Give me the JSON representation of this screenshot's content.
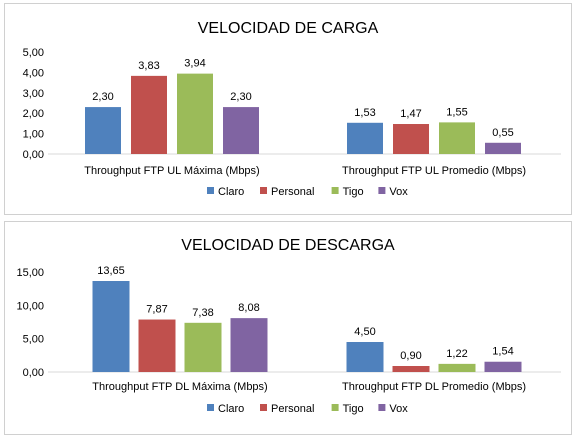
{
  "chart_data": [
    {
      "type": "bar",
      "title": "VELOCIDAD DE CARGA",
      "categories": [
        "Throughput FTP UL Máxima (Mbps)",
        "Throughput FTP UL Promedio (Mbps)"
      ],
      "series": [
        {
          "name": "Claro",
          "values": [
            2.3,
            1.53
          ],
          "labels": [
            "2,30",
            "1,53"
          ],
          "color": "#4F81BD"
        },
        {
          "name": "Personal",
          "values": [
            3.83,
            1.47
          ],
          "labels": [
            "3,83",
            "1,47"
          ],
          "color": "#C0504D"
        },
        {
          "name": "Tigo",
          "values": [
            3.94,
            1.55
          ],
          "labels": [
            "3,94",
            "1,55"
          ],
          "color": "#9BBB59"
        },
        {
          "name": "Vox",
          "values": [
            2.3,
            0.55
          ],
          "labels": [
            "2,30",
            "0,55"
          ],
          "color": "#8064A2"
        }
      ],
      "ylim": [
        0,
        5
      ],
      "yticks": [
        "0,00",
        "1,00",
        "2,00",
        "3,00",
        "4,00",
        "5,00"
      ],
      "legend": "bottom",
      "grid": false
    },
    {
      "type": "bar",
      "title": "VELOCIDAD DE DESCARGA",
      "categories": [
        "Throughput FTP DL Máxima (Mbps)",
        "Throughput FTP DL Promedio (Mbps)"
      ],
      "series": [
        {
          "name": "Claro",
          "values": [
            13.65,
            4.5
          ],
          "labels": [
            "13,65",
            "4,50"
          ],
          "color": "#4F81BD"
        },
        {
          "name": "Personal",
          "values": [
            7.87,
            0.9
          ],
          "labels": [
            "7,87",
            "0,90"
          ],
          "color": "#C0504D"
        },
        {
          "name": "Tigo",
          "values": [
            7.38,
            1.22
          ],
          "labels": [
            "7,38",
            "1,22"
          ],
          "color": "#9BBB59"
        },
        {
          "name": "Vox",
          "values": [
            8.08,
            1.54
          ],
          "labels": [
            "8,08",
            "1,54"
          ],
          "color": "#8064A2"
        }
      ],
      "ylim": [
        0,
        15
      ],
      "yticks": [
        "0,00",
        "5,00",
        "10,00",
        "15,00"
      ],
      "legend": "bottom",
      "grid": false
    }
  ]
}
